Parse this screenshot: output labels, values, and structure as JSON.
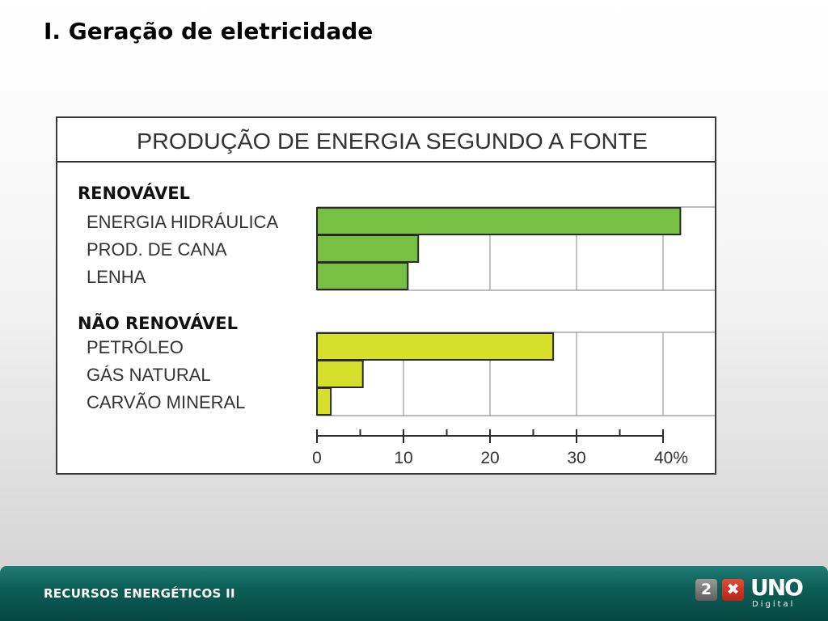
{
  "slide": {
    "title": "I. Geração de eletricidade"
  },
  "footer": {
    "text": "RECURSOS ENERGÉTICOS II",
    "logo_mark_1": "2",
    "logo_mark_2": "✖",
    "logo_brand": "UNO",
    "logo_sub": "Digital"
  },
  "colors": {
    "renewable": "#77c043",
    "non_renewable": "#d6e02a",
    "footer": "#0d5e58"
  },
  "chart_data": {
    "type": "bar",
    "orientation": "horizontal",
    "title": "PRODUÇÃO DE ENERGIA SEGUNDO A FONTE",
    "xlim": [
      0,
      40
    ],
    "ticks": [
      0,
      10,
      20,
      30,
      40
    ],
    "tick_labels": [
      "0",
      "10",
      "20",
      "30",
      "40%"
    ],
    "grid": true,
    "groups": [
      {
        "name": "RENOVÁVEL",
        "color": "#77c043",
        "categories": [
          "ENERGIA HIDRÁULICA",
          "PROD. DE CANA",
          "LENHA"
        ],
        "values": [
          42,
          11.7,
          10.5
        ]
      },
      {
        "name": "NÃO RENOVÁVEL",
        "color": "#d6e02a",
        "categories": [
          "PETRÓLEO",
          "GÁS NATURAL",
          "CARVÃO MINERAL"
        ],
        "values": [
          27.3,
          5.3,
          1.6
        ]
      }
    ]
  }
}
